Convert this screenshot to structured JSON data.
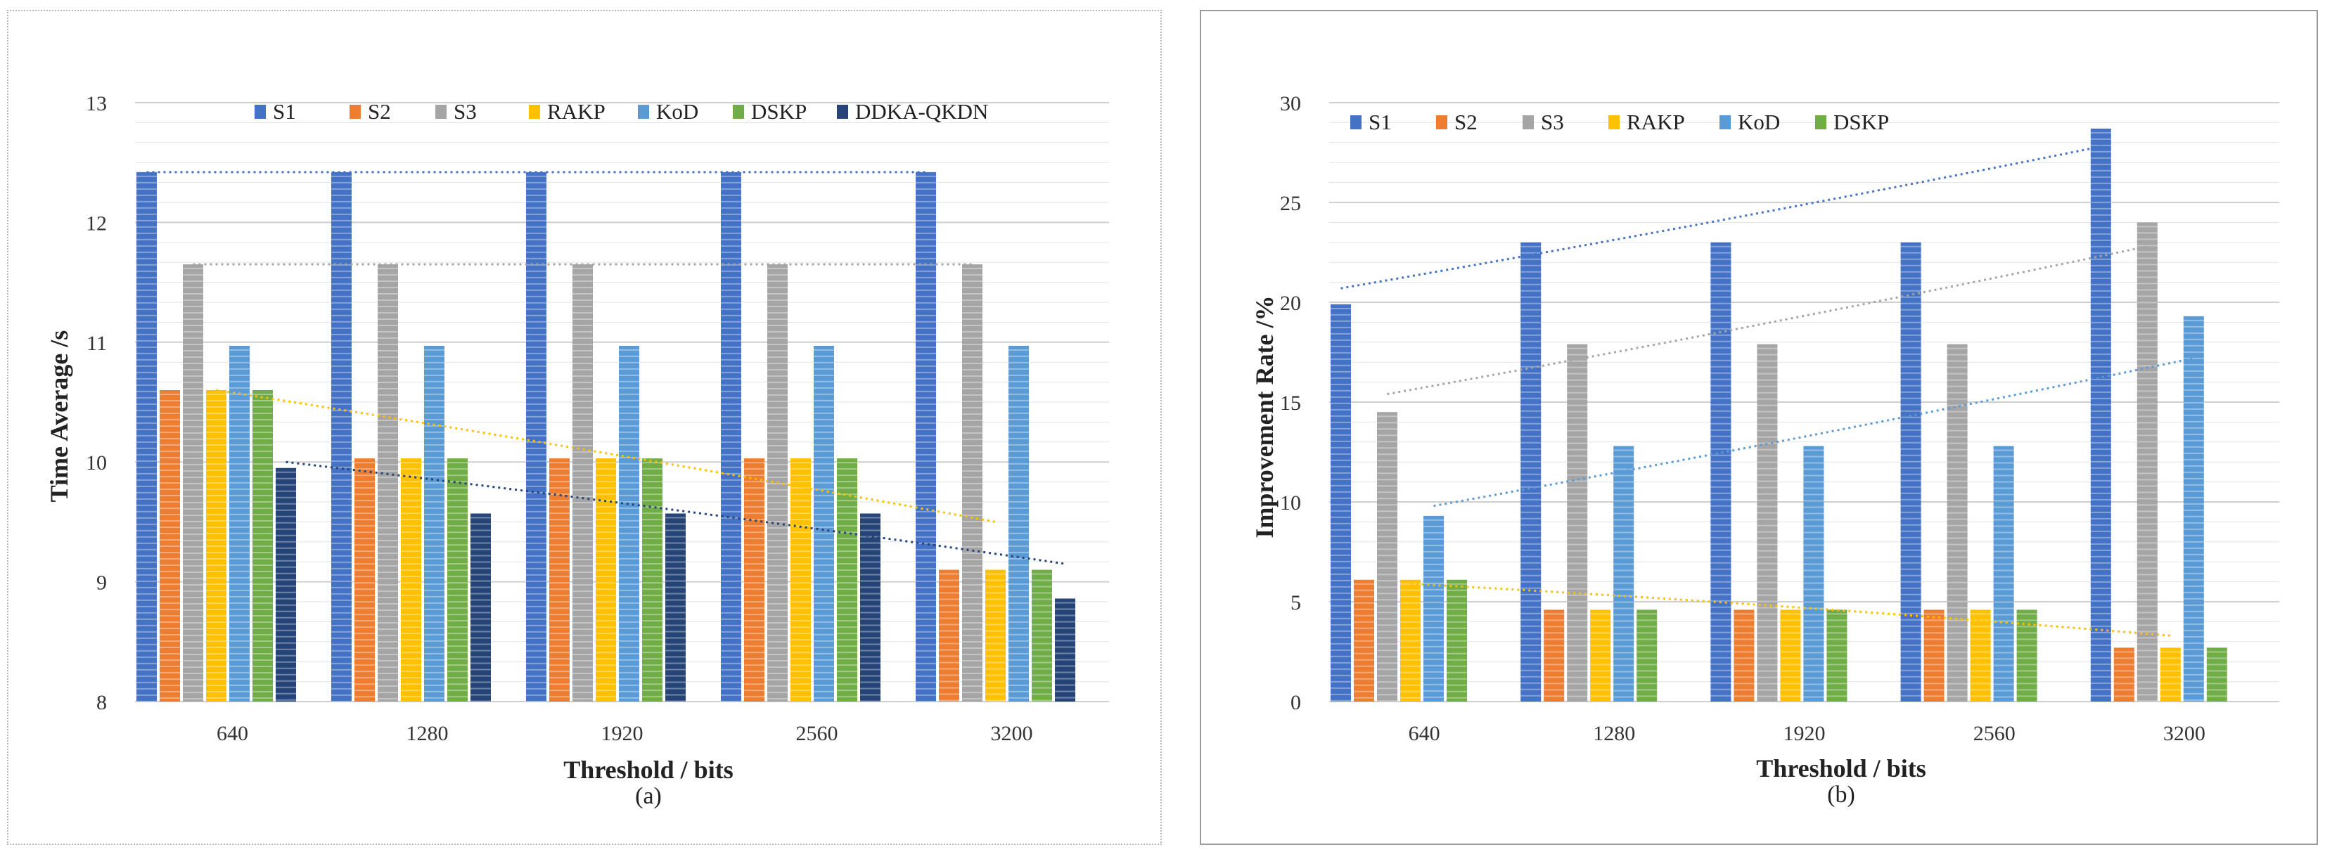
{
  "chart_data": [
    {
      "id": "a",
      "type": "bar",
      "caption": "(a)",
      "xlabel": "Threshold / bits",
      "ylabel": "Time Average /s",
      "ylim": [
        8,
        13
      ],
      "yticks": [
        8,
        9,
        10,
        11,
        12,
        13
      ],
      "categories": [
        "640",
        "1280",
        "1920",
        "2560",
        "3200"
      ],
      "legend_position": "top",
      "series": [
        {
          "name": "S1",
          "color": "#4472c4",
          "values": [
            12.42,
            12.42,
            12.42,
            12.42,
            12.42
          ]
        },
        {
          "name": "S2",
          "color": "#ed7d31",
          "values": [
            10.6,
            10.03,
            10.03,
            10.03,
            9.1
          ]
        },
        {
          "name": "S3",
          "color": "#a5a5a5",
          "values": [
            11.65,
            11.65,
            11.65,
            11.65,
            11.65
          ]
        },
        {
          "name": "RAKP",
          "color": "#ffc000",
          "values": [
            10.6,
            10.03,
            10.03,
            10.03,
            9.1
          ]
        },
        {
          "name": "KoD",
          "color": "#5b9bd5",
          "values": [
            10.97,
            10.97,
            10.97,
            10.97,
            10.97
          ]
        },
        {
          "name": "DSKP",
          "color": "#70ad47",
          "values": [
            10.6,
            10.03,
            10.03,
            10.03,
            9.1
          ]
        },
        {
          "name": "DDKA-QKDN",
          "color": "#264478",
          "values": [
            9.95,
            9.57,
            9.57,
            9.57,
            8.86
          ]
        }
      ],
      "trendlines": [
        {
          "series": "S1",
          "start": 12.42,
          "end": 12.42
        },
        {
          "series": "S3",
          "start": 11.65,
          "end": 11.65
        },
        {
          "series": "RAKP",
          "start": 10.6,
          "end": 9.5
        },
        {
          "series": "DDKA-QKDN",
          "start": 10.0,
          "end": 9.15
        }
      ]
    },
    {
      "id": "b",
      "type": "bar",
      "caption": "(b)",
      "xlabel": "Threshold / bits",
      "ylabel": "Improvement Rate /%",
      "ylim": [
        0,
        30
      ],
      "yticks": [
        0,
        5,
        10,
        15,
        20,
        25,
        30
      ],
      "categories": [
        "640",
        "1280",
        "1920",
        "2560",
        "3200"
      ],
      "legend_position": "top",
      "series": [
        {
          "name": "S1",
          "color": "#4472c4",
          "values": [
            19.9,
            23.0,
            23.0,
            23.0,
            28.7
          ]
        },
        {
          "name": "S2",
          "color": "#ed7d31",
          "values": [
            6.1,
            4.6,
            4.6,
            4.6,
            2.7
          ]
        },
        {
          "name": "S3",
          "color": "#a5a5a5",
          "values": [
            14.5,
            17.9,
            17.9,
            17.9,
            24.0
          ]
        },
        {
          "name": "RAKP",
          "color": "#ffc000",
          "values": [
            6.1,
            4.6,
            4.6,
            4.6,
            2.7
          ]
        },
        {
          "name": "KoD",
          "color": "#5b9bd5",
          "values": [
            9.3,
            12.8,
            12.8,
            12.8,
            19.3
          ]
        },
        {
          "name": "DSKP",
          "color": "#70ad47",
          "values": [
            6.1,
            4.6,
            4.6,
            4.6,
            2.7
          ]
        }
      ],
      "trendlines": [
        {
          "series": "S1",
          "start": 20.7,
          "end": 27.8
        },
        {
          "series": "S3",
          "start": 15.4,
          "end": 22.8
        },
        {
          "series": "KoD",
          "start": 9.8,
          "end": 17.2
        },
        {
          "series": "RAKP",
          "start": 5.9,
          "end": 3.3
        }
      ]
    }
  ]
}
